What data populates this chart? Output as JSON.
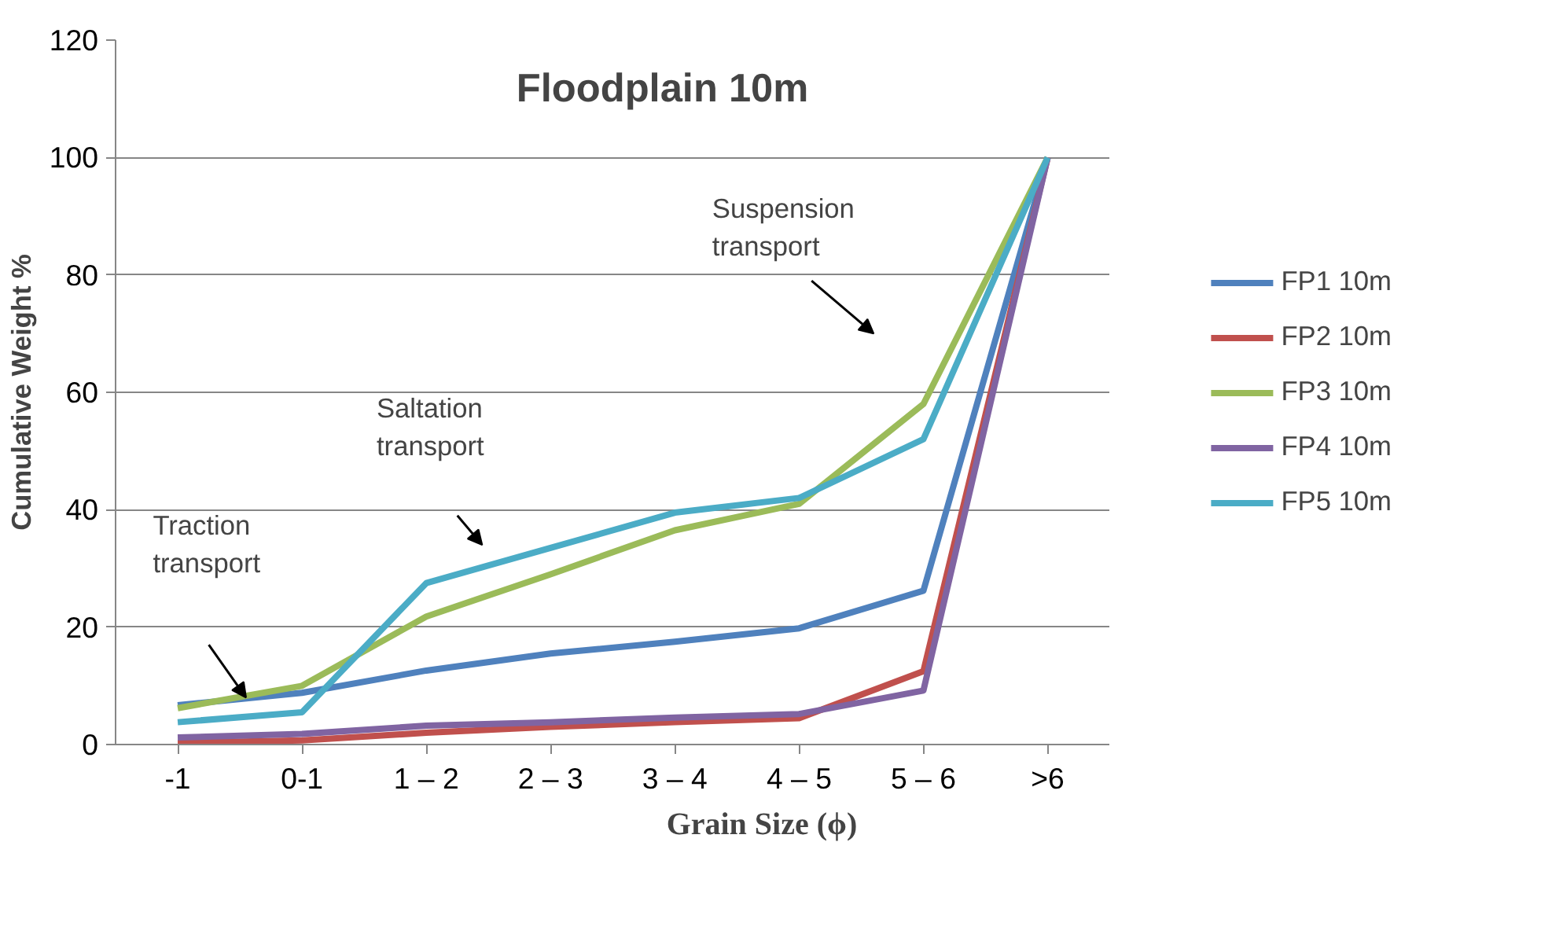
{
  "chart_data": {
    "type": "line",
    "title": "Floodplain 10m",
    "xlabel": "Grain Size (ϕ)",
    "ylabel": "Cumulative Weight %",
    "categories": [
      "-1",
      "0-1",
      "1 – 2",
      "2 – 3",
      "3 – 4",
      "4 – 5",
      "5 – 6",
      ">6"
    ],
    "ylim": [
      0,
      120
    ],
    "yticks": [
      0,
      20,
      40,
      60,
      80,
      100,
      120
    ],
    "grid": "y",
    "legend": "right",
    "marker": "none",
    "line_style": "solid",
    "series": [
      {
        "name": "FP1 10m",
        "color": "#4f81bd",
        "values": [
          6.7,
          8.8,
          12.6,
          15.5,
          17.5,
          19.8,
          26.2,
          100
        ]
      },
      {
        "name": "FP2 10m",
        "color": "#c0504d",
        "values": [
          0.3,
          0.7,
          2,
          3,
          3.8,
          4.5,
          12.5,
          100
        ]
      },
      {
        "name": "FP3 10m",
        "color": "#9bbb59",
        "values": [
          6.2,
          10,
          21.8,
          29,
          36.5,
          41,
          58,
          100
        ]
      },
      {
        "name": "FP4 10m",
        "color": "#8064a2",
        "values": [
          1.2,
          1.8,
          3.2,
          3.8,
          4.6,
          5.2,
          9.2,
          100
        ]
      },
      {
        "name": "FP5 10m",
        "color": "#4bacc6",
        "values": [
          3.8,
          5.5,
          27.5,
          33.5,
          39.5,
          42,
          52,
          100
        ]
      }
    ],
    "annotations": [
      "Traction\ntransport",
      "Saltation\ntransport",
      "Suspension\ntransport"
    ]
  }
}
